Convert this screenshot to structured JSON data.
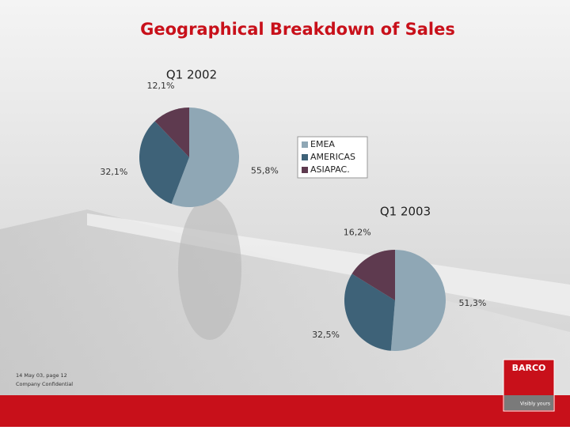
{
  "title": "Geographical Breakdown of Sales",
  "chart_data": [
    {
      "type": "pie",
      "title": "Q1 2002",
      "categories": [
        "EMEA",
        "AMERICAS",
        "ASIAPAC."
      ],
      "values": [
        55.8,
        32.1,
        12.1
      ],
      "value_labels": [
        "55,8%",
        "32,1%",
        "12,1%"
      ],
      "colors": [
        "#8fa7b5",
        "#3e6278",
        "#5e3a4f"
      ],
      "legend": "right"
    },
    {
      "type": "pie",
      "title": "Q1 2003",
      "values": [
        51.3,
        32.5,
        16.2
      ],
      "value_labels": [
        "51,3%",
        "32,5%",
        "16,2%"
      ],
      "colors": [
        "#8fa7b5",
        "#3e6278",
        "#5e3a4f"
      ]
    }
  ],
  "footer": {
    "page": "14 May 03, page 12",
    "confidentiality": "Company Confidential"
  },
  "logo": {
    "brand": "BARCO",
    "tagline": "Visibly yours"
  }
}
